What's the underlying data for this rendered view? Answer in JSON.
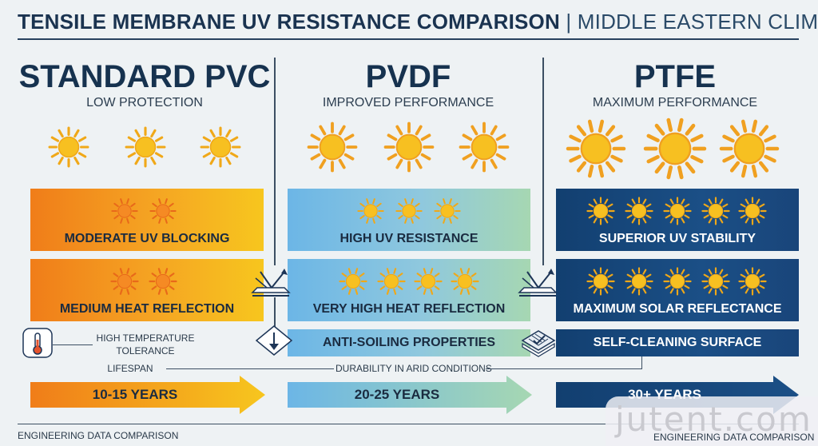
{
  "header": {
    "title": "TENSILE MEMBRANE UV RESISTANCE COMPARISON",
    "separator": "|",
    "subtitle": "MIDDLE EASTERN CLIMATE"
  },
  "columns": [
    {
      "name": "STANDARD PVC",
      "tagline": "LOW PROTECTION",
      "uv_label": "MODERATE UV BLOCKING",
      "heat_label": "MEDIUM HEAT REFLECTION",
      "lifespan": "10-15 YEARS"
    },
    {
      "name": "PVDF",
      "tagline": "IMPROVED PERFORMANCE",
      "uv_label": "HIGH UV RESISTANCE",
      "heat_label": "VERY HIGH HEAT REFLECTION",
      "soiling_label": "ANTI-SOILING PROPERTIES",
      "lifespan": "20-25 YEARS"
    },
    {
      "name": "PTFE",
      "tagline": "MAXIMUM PERFORMANCE",
      "uv_label": "SUPERIOR UV STABILITY",
      "heat_label": "MAXIMUM SOLAR REFLECTANCE",
      "soiling_label": "SELF-CLEANING SURFACE",
      "lifespan": "30+ YEARS"
    }
  ],
  "annotations": {
    "temp_line1": "HIGH TEMPERATURE",
    "temp_line2": "TOLERANCE",
    "lifespan": "LIFESPAN",
    "durability": "DURABILITY IN ARID CONDITIONS"
  },
  "footer": {
    "left": "ENGINEERING DATA COMPARISON",
    "right": "ENGINEERING DATA COMPARISON"
  },
  "watermark": "jutent.com",
  "colors": {
    "sun": "#f7c021",
    "sun_ray": "#f0a818",
    "pvc_accent": "#f07d19",
    "pvdf_accent": "#6cb6e6",
    "ptfe_accent": "#123f70"
  },
  "icons": [
    "sun-icon",
    "thermometer-icon",
    "reflection-icon",
    "down-arrow-icon",
    "membrane-texture-icon"
  ]
}
